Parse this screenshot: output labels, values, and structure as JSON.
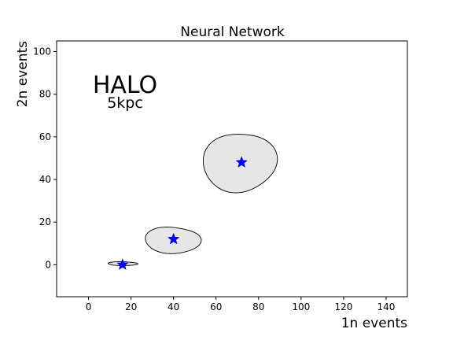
{
  "chart_data": {
    "type": "scatter",
    "title": "Neural Network",
    "xlabel": "1n events",
    "ylabel": "2n events",
    "xlim": [
      -15,
      150
    ],
    "ylim": [
      -15,
      105
    ],
    "xticks": [
      0,
      20,
      40,
      60,
      80,
      100,
      120,
      140
    ],
    "yticks": [
      0,
      20,
      40,
      60,
      80,
      100
    ],
    "grid": false,
    "annotations": [
      {
        "id": "halo",
        "text": "HALO",
        "x": 17,
        "y": 82
      },
      {
        "id": "distance",
        "text": "5kpc",
        "x": 17,
        "y": 76
      }
    ],
    "points": [
      {
        "x": 16,
        "y": 0
      },
      {
        "x": 40,
        "y": 12
      },
      {
        "x": 72,
        "y": 48
      }
    ],
    "regions": [
      {
        "center": [
          16,
          0.5
        ],
        "rx": 7,
        "ry": 0.9
      },
      {
        "center": [
          39.5,
          11.5
        ],
        "rx": 12.5,
        "ry": 6.5
      },
      {
        "center": [
          71,
          48
        ],
        "rx": 16.5,
        "ry": 14.5
      }
    ],
    "colors": {
      "marker": "#0000ff",
      "region_fill": "#e6e6e6",
      "region_edge": "#000000"
    }
  }
}
